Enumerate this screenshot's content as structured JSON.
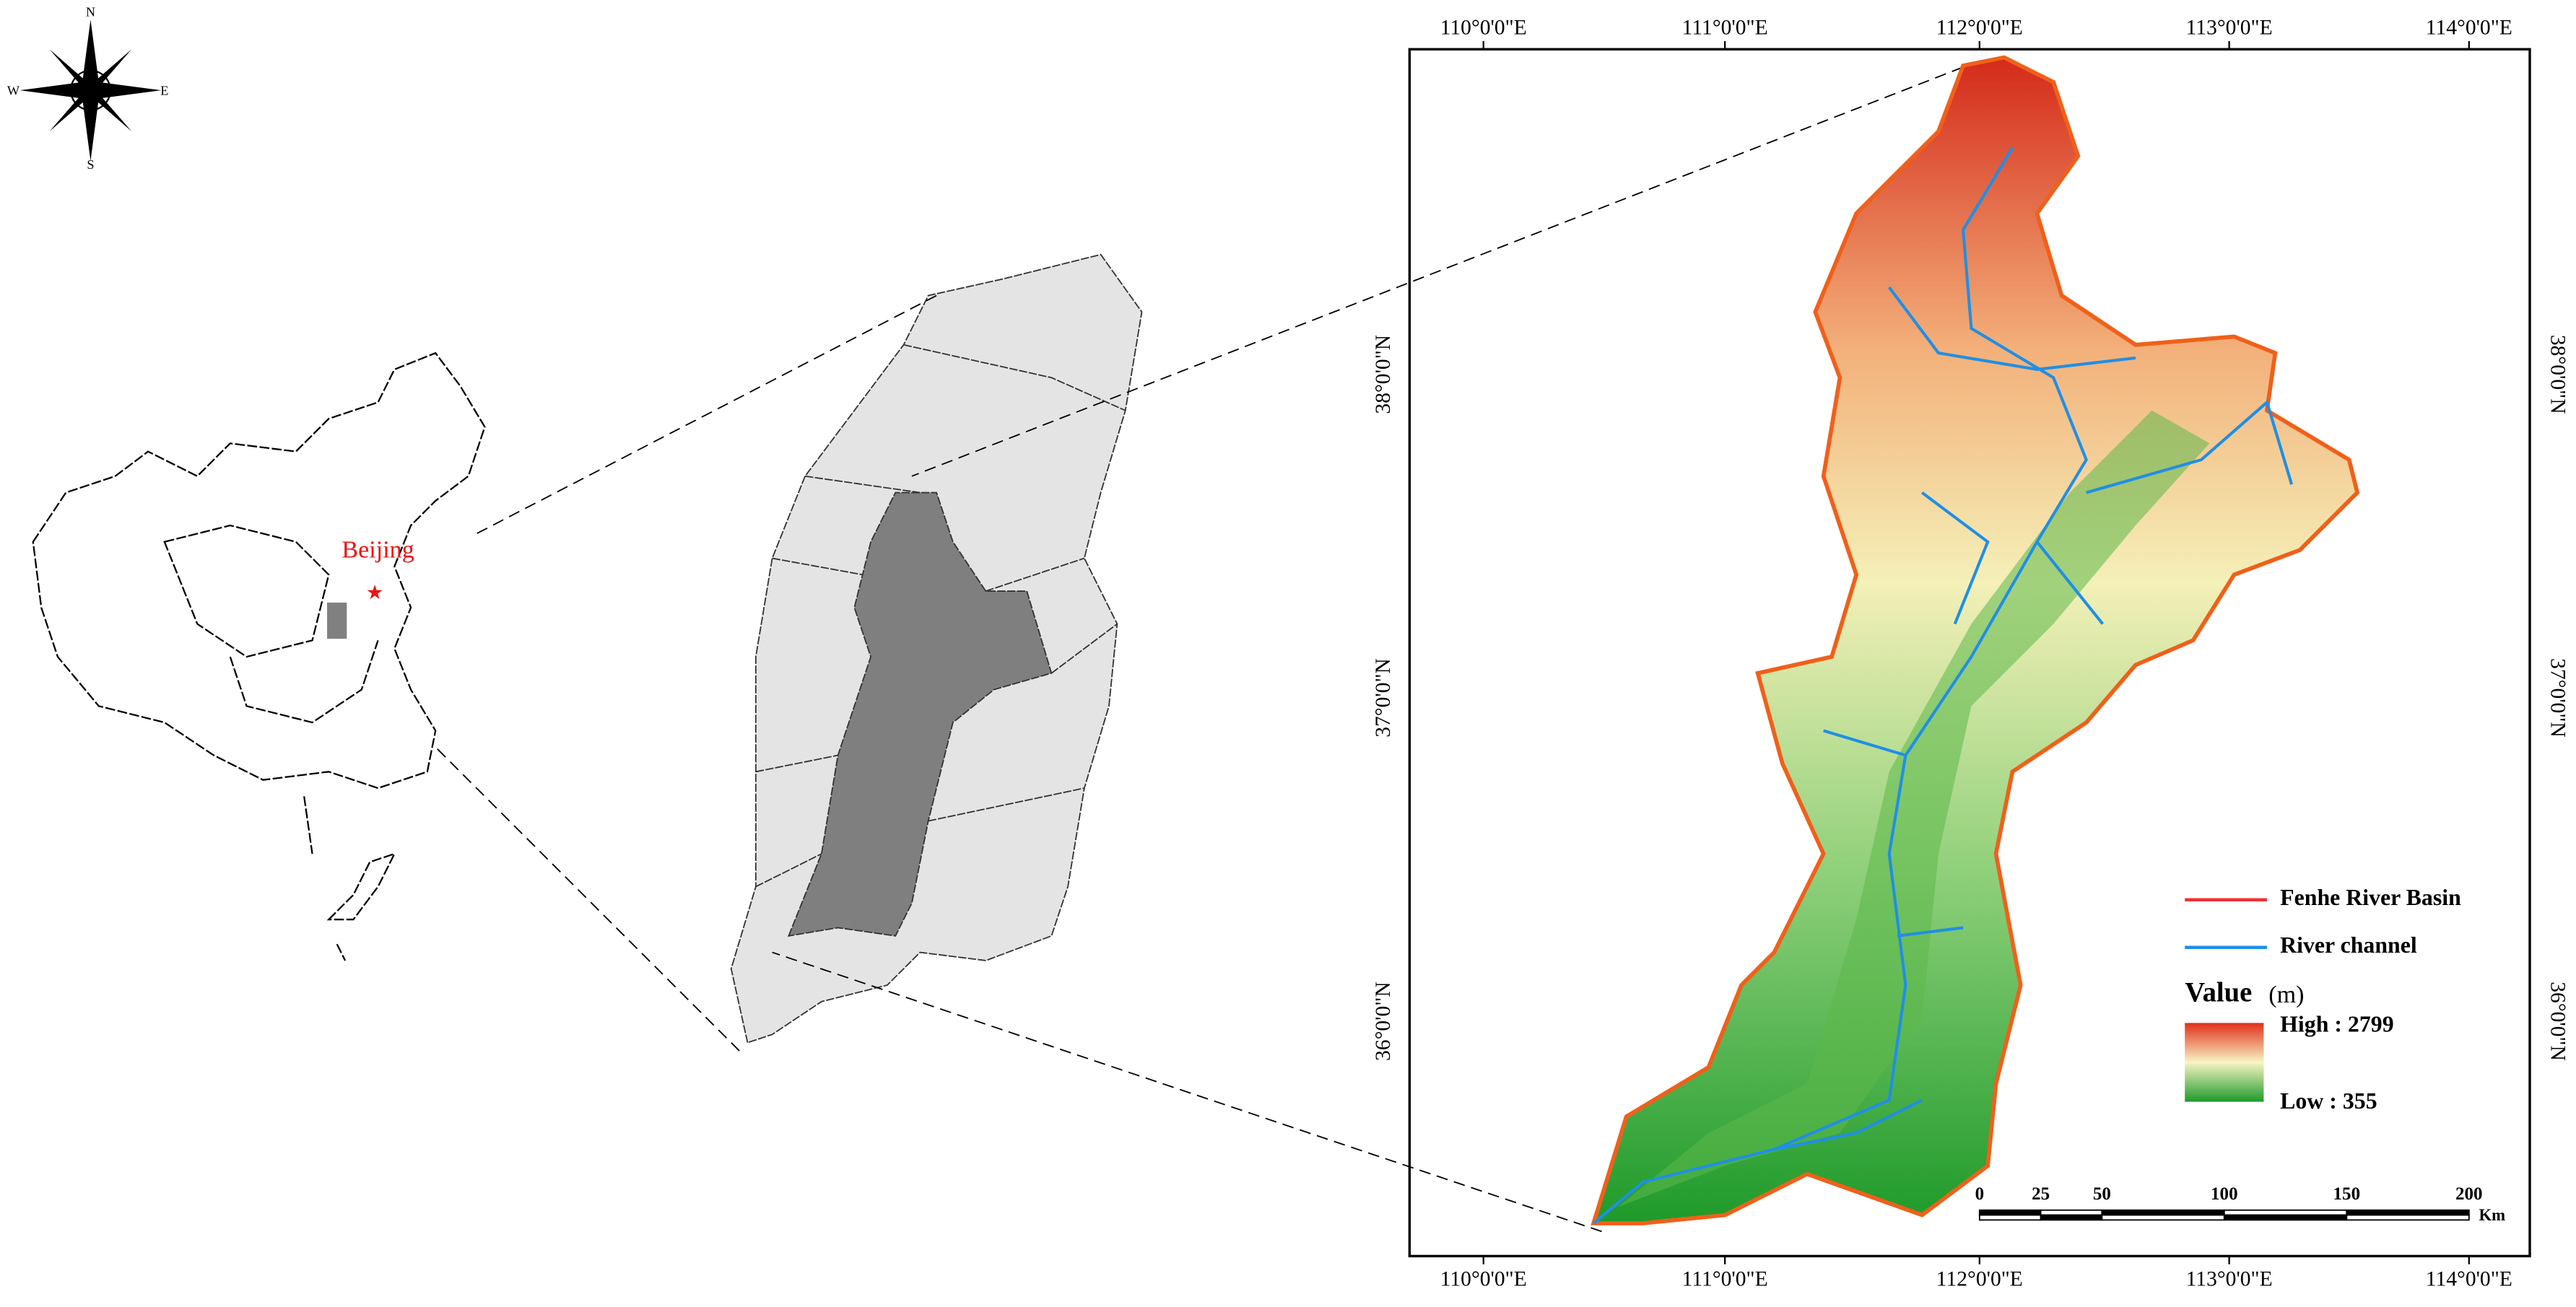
{
  "compass": {
    "n": "N",
    "s": "S",
    "w": "W",
    "e": "E"
  },
  "inset": {
    "label": "Beijing"
  },
  "map": {
    "lon_labels": [
      "110°0'0\"E",
      "111°0'0\"E",
      "112°0'0\"E",
      "113°0'0\"E",
      "114°0'0\"E"
    ],
    "lat_labels": [
      "38°0'0\"N",
      "37°0'0\"N",
      "36°0'0\"N"
    ]
  },
  "legend": {
    "basin": "Fenhe River Basin",
    "river": "River channel",
    "value_title": "Value",
    "value_unit": "(m)",
    "high": "High : 2799",
    "low": "Low : 355"
  },
  "scale_bar": {
    "ticks": [
      0,
      25,
      50,
      100,
      150,
      200
    ],
    "unit": "Km"
  }
}
